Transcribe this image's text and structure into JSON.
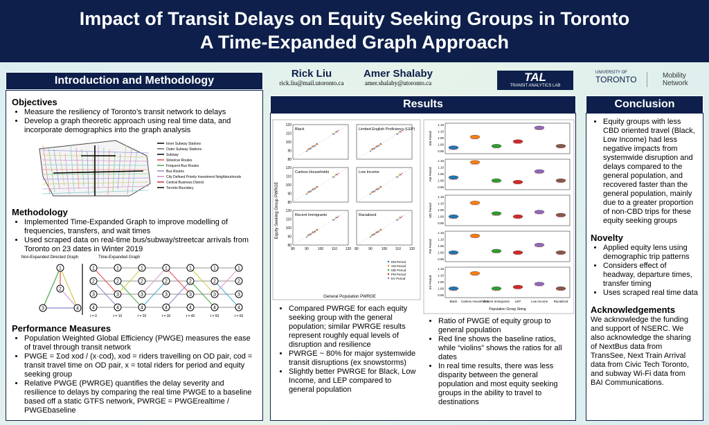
{
  "header": {
    "title_line1": "Impact of Transit Delays on Equity Seeking Groups in Toronto",
    "title_line2": "A Time-Expanded Graph Approach"
  },
  "authors": [
    {
      "name": "Rick Liu",
      "email": "rick.liu@mail.utoronto.ca"
    },
    {
      "name": "Amer Shalaby",
      "email": "amer.shalaby@utoronto.ca"
    }
  ],
  "logos": {
    "tal": "TAL",
    "tal_sub": "TRANSIT ANALYTICS LAB",
    "uoft_top": "UNIVERSITY OF",
    "uoft": "TORONTO",
    "mobility": "Mobility",
    "network": "Network"
  },
  "intro": {
    "heading": "Introduction and Methodology",
    "objectives": {
      "title": "Objectives",
      "bullets": [
        "Measure the resiliency of Toronto’s transit network to delays",
        "Develop a graph theoretic approach using real time data, and incorporate demographics into the graph analysis"
      ]
    },
    "map_legend": [
      "Inner Subway Stations",
      "Outer Subway Stations",
      "Subway",
      "Streetcar Routes",
      "Frequent Bus Routes",
      "Bus Routes",
      "City Defined Priority Investment Neighbourhoods",
      "Central Business District",
      "Toronto Boundary"
    ],
    "methodology": {
      "title": "Methodology",
      "bullets": [
        "Implemented Time-Expanded Graph to improve modelling of frequencies, transfers, and wait times",
        "Used scraped data on real-time bus/subway/streetcar arrivals from Toronto on 23 dates in Winter 2019"
      ]
    },
    "graph": {
      "left_title": "Non-Expanded Directed Graph",
      "right_title": "Time-Expanded Graph",
      "nodes": [
        "1",
        "2",
        "3",
        "4"
      ],
      "times": [
        "t = 0",
        "t = 10",
        "t = 20",
        "t = 30",
        "t = 40",
        "t = 50",
        "t = 60"
      ]
    },
    "performance": {
      "title": "Performance Measures",
      "bullets": [
        "Population Weighted Global Efficiency (PWGE) measures the ease of travel through transit network",
        "PWGE = Σod xod / (x·cod), xod = riders travelling on OD pair, cod = transit travel time on OD pair, x = total riders for period and equity seeking group",
        "Relative PWGE (PWRGE) quantifies the delay severity and resilience to delays by comparing the real time PWGE to a baseline based off a static GTFS network, PWRGE = PWGErealtime / PWGEbaseline"
      ]
    }
  },
  "results": {
    "heading": "Results",
    "scatter": {
      "panels": [
        "Black",
        "Limited English Proficiency (LEP)",
        "Carless Households",
        "Low Income",
        "Recent Immigrants",
        "Racialized"
      ],
      "ticks": [
        "80",
        "90",
        "100",
        "110",
        "120"
      ],
      "xlabel": "General Population PWRGE",
      "ylabel": "Equity Seeking Group PWRGE",
      "legend": [
        "EM Period",
        "AM Period",
        "MD Period",
        "PM Period",
        "EV Period"
      ]
    },
    "violin": {
      "periods": [
        "EM Period",
        "AM Period",
        "MD Period",
        "PM Period",
        "EV Period"
      ],
      "yticks": [
        "1.15",
        "1.10",
        "1.05",
        "1.00",
        "0.95"
      ],
      "categories": [
        "Black",
        "Carless Households",
        "Recent Immigrants",
        "LEP",
        "Low Income",
        "Racialized"
      ],
      "xlabel": "Population Group String"
    },
    "left_bullets": [
      "Compared PWRGE for each equity seeking group with the general population; similar PWRGE results represent roughly equal levels of disruption and resilience",
      "PWRGE ~ 80% for major systemwide transit disruptions (ex snowstorms)",
      "Slightly better PWRGE for Black, Low Income, and LEP compared to general population"
    ],
    "right_bullets": [
      "Ratio of PWGE of equity group to general population",
      "Red line shows the baseline ratios, while “violins” shows the ratios for all dates",
      "In real time results, there was less disparity between the general population and most equity seeking groups in the ability to travel to destinations"
    ]
  },
  "conclusion": {
    "heading": "Conclusion",
    "bullets": [
      "Equity groups with less CBD oriented travel (Black, Low Income) had less negative impacts from systemwide disruption and delays compared to the general population, and recovered faster than the general population, mainly due to a greater proportion of non-CBD trips for these equity seeking groups"
    ],
    "novelty": {
      "title": "Novelty",
      "bullets": [
        "Applied equity lens using demographic trip patterns",
        "Considers effect of headway, departure times, transfer timing",
        "Uses scraped real time data"
      ]
    },
    "ack": {
      "title": "Acknowledgements",
      "text": "We acknowledge the funding and support of NSERC. We also acknowledge the sharing of NextBus data from TransSee, Next Train Arrival data from Civic Tech Toronto, and subway Wi-Fi data from BAI Communications."
    }
  }
}
